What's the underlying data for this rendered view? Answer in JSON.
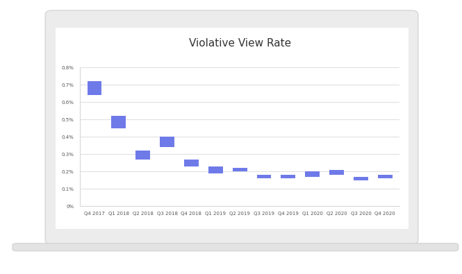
{
  "chart_data": {
    "type": "bar",
    "title": "Violative View Rate",
    "categories": [
      "Q4 2017",
      "Q1 2018",
      "Q2 2018",
      "Q3 2018",
      "Q4 2018",
      "Q1 2019",
      "Q2 2019",
      "Q3 2019",
      "Q4 2019",
      "Q1 2020",
      "Q2 2020",
      "Q3 2020",
      "Q4 2020"
    ],
    "values": [
      [
        0.64,
        0.72
      ],
      [
        0.45,
        0.52
      ],
      [
        0.27,
        0.32
      ],
      [
        0.34,
        0.4
      ],
      [
        0.23,
        0.27
      ],
      [
        0.19,
        0.23
      ],
      [
        0.2,
        0.22
      ],
      [
        0.16,
        0.18
      ],
      [
        0.16,
        0.18
      ],
      [
        0.17,
        0.2
      ],
      [
        0.18,
        0.21
      ],
      [
        0.15,
        0.17
      ],
      [
        0.16,
        0.18
      ]
    ],
    "color": "#6e7ae8",
    "ylim": [
      0,
      0.8
    ],
    "yticks": [
      {
        "value": 0,
        "label": "0%"
      },
      {
        "value": 0.1,
        "label": "0.1%"
      },
      {
        "value": 0.2,
        "label": "0.2%"
      },
      {
        "value": 0.3,
        "label": "0.3%"
      },
      {
        "value": 0.4,
        "label": "0.4%"
      },
      {
        "value": 0.5,
        "label": "0.5%"
      },
      {
        "value": 0.6,
        "label": "0.6%"
      },
      {
        "value": 0.7,
        "label": "0.7%"
      },
      {
        "value": 0.8,
        "label": "0.8%"
      }
    ],
    "grid": true
  }
}
